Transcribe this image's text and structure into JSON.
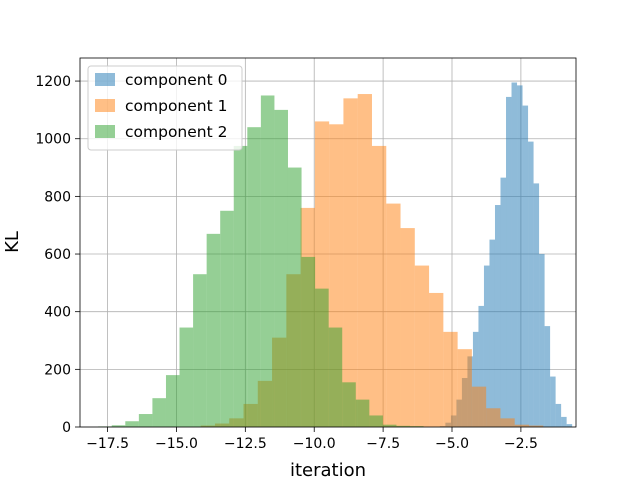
{
  "chart_data": {
    "type": "histogram",
    "xlabel": "iteration",
    "ylabel": "KL",
    "xlim": [
      -18.5,
      -0.5
    ],
    "ylim": [
      0,
      1280
    ],
    "grid": true,
    "legend_position": "top-left",
    "x_ticks": [
      {
        "value": -17.5,
        "label": "−17.5"
      },
      {
        "value": -15.0,
        "label": "−15.0"
      },
      {
        "value": -12.5,
        "label": "−12.5"
      },
      {
        "value": -10.0,
        "label": "−10.0"
      },
      {
        "value": -7.5,
        "label": "−7.5"
      },
      {
        "value": -5.0,
        "label": "−5.0"
      },
      {
        "value": -2.5,
        "label": "−2.5"
      }
    ],
    "y_ticks": [
      {
        "value": 0,
        "label": "0"
      },
      {
        "value": 200,
        "label": "200"
      },
      {
        "value": 400,
        "label": "400"
      },
      {
        "value": 600,
        "label": "600"
      },
      {
        "value": 800,
        "label": "800"
      },
      {
        "value": 1000,
        "label": "1000"
      },
      {
        "value": 1200,
        "label": "1200"
      }
    ],
    "series": [
      {
        "name": "component 0",
        "color": "#1f77b4",
        "opacity": 0.5,
        "bin_start": -5.44,
        "bin_width": 0.2,
        "counts": [
          3,
          15,
          40,
          95,
          170,
          245,
          330,
          420,
          560,
          650,
          770,
          865,
          1145,
          1195,
          1185,
          1115,
          990,
          845,
          600,
          350,
          175,
          80,
          35,
          10
        ]
      },
      {
        "name": "component 1",
        "color": "#ff7f0e",
        "opacity": 0.5,
        "bin_start": -14.12,
        "bin_width": 0.518,
        "counts": [
          5,
          12,
          30,
          80,
          160,
          310,
          530,
          760,
          1060,
          1050,
          1140,
          1155,
          975,
          775,
          690,
          560,
          465,
          330,
          270,
          140,
          65,
          30,
          8,
          5
        ]
      },
      {
        "name": "component 2",
        "color": "#2ca02c",
        "opacity": 0.5,
        "bin_start": -17.84,
        "bin_width": 0.492,
        "counts": [
          2,
          6,
          20,
          45,
          100,
          180,
          345,
          530,
          670,
          750,
          975,
          1040,
          1150,
          1100,
          900,
          590,
          480,
          345,
          155,
          95,
          40,
          8,
          4,
          3
        ]
      }
    ]
  }
}
